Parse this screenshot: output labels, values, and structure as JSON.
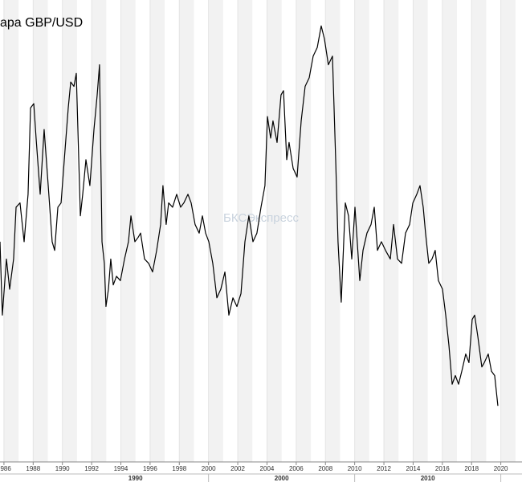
{
  "chart_data": {
    "type": "line",
    "title": "ара GBP/USD",
    "watermark": "БКСЭкспресс",
    "x": [
      1985.73,
      1985.89,
      1986.17,
      1986.39,
      1986.66,
      1986.83,
      1987.1,
      1987.38,
      1987.65,
      1987.82,
      1988.04,
      1988.2,
      1988.48,
      1988.75,
      1989.03,
      1989.3,
      1989.47,
      1989.69,
      1989.91,
      1990.13,
      1990.4,
      1990.57,
      1990.79,
      1990.95,
      1991.23,
      1991.39,
      1991.61,
      1991.88,
      1992.16,
      1992.38,
      1992.54,
      1992.71,
      1992.87,
      1992.98,
      1993.15,
      1993.31,
      1993.48,
      1993.7,
      1993.97,
      1994.25,
      1994.52,
      1994.69,
      1994.96,
      1995.18,
      1995.35,
      1995.62,
      1995.9,
      1996.17,
      1996.45,
      1996.72,
      1996.88,
      1997.1,
      1997.27,
      1997.54,
      1997.82,
      1998.09,
      1998.31,
      1998.59,
      1998.81,
      1999.08,
      1999.36,
      1999.58,
      1999.8,
      2000.02,
      2000.29,
      2000.57,
      2000.84,
      2001.12,
      2001.39,
      2001.67,
      2001.94,
      2002.22,
      2002.49,
      2002.76,
      2003.04,
      2003.31,
      2003.59,
      2003.86,
      2004.03,
      2004.25,
      2004.41,
      2004.69,
      2004.96,
      2005.13,
      2005.35,
      2005.51,
      2005.79,
      2006.06,
      2006.34,
      2006.61,
      2006.89,
      2007.16,
      2007.44,
      2007.71,
      2007.93,
      2008.2,
      2008.48,
      2008.7,
      2008.86,
      2009.08,
      2009.36,
      2009.58,
      2009.8,
      2010.02,
      2010.35,
      2010.57,
      2010.84,
      2011.12,
      2011.34,
      2011.56,
      2011.83,
      2012.11,
      2012.44,
      2012.66,
      2012.93,
      2013.21,
      2013.48,
      2013.76,
      2013.98,
      2014.25,
      2014.47,
      2014.69,
      2014.85,
      2015.07,
      2015.29,
      2015.51,
      2015.73,
      2016.01,
      2016.23,
      2016.45,
      2016.67,
      2016.89,
      2017.11,
      2017.33,
      2017.6,
      2017.82,
      2018.04,
      2018.21,
      2018.43,
      2018.7,
      2018.87,
      2019.14,
      2019.36,
      2019.58,
      2019.8
    ],
    "series": [
      {
        "name": "GBP/USD",
        "color": "#000000",
        "values": [
          1.59,
          1.42,
          1.55,
          1.48,
          1.55,
          1.67,
          1.68,
          1.59,
          1.7,
          1.9,
          1.91,
          1.83,
          1.7,
          1.85,
          1.72,
          1.59,
          1.57,
          1.67,
          1.68,
          1.78,
          1.9,
          1.96,
          1.95,
          1.98,
          1.65,
          1.7,
          1.78,
          1.72,
          1.85,
          1.93,
          2.0,
          1.59,
          1.54,
          1.44,
          1.48,
          1.55,
          1.49,
          1.51,
          1.5,
          1.55,
          1.59,
          1.65,
          1.59,
          1.6,
          1.61,
          1.55,
          1.54,
          1.52,
          1.57,
          1.63,
          1.72,
          1.63,
          1.68,
          1.67,
          1.7,
          1.67,
          1.68,
          1.7,
          1.68,
          1.63,
          1.61,
          1.65,
          1.61,
          1.59,
          1.54,
          1.46,
          1.48,
          1.52,
          1.42,
          1.46,
          1.44,
          1.47,
          1.59,
          1.65,
          1.59,
          1.61,
          1.67,
          1.72,
          1.88,
          1.83,
          1.87,
          1.82,
          1.93,
          1.94,
          1.78,
          1.82,
          1.76,
          1.74,
          1.87,
          1.95,
          1.97,
          2.02,
          2.04,
          2.09,
          2.06,
          2.0,
          2.02,
          1.78,
          1.59,
          1.45,
          1.68,
          1.65,
          1.55,
          1.67,
          1.5,
          1.57,
          1.61,
          1.63,
          1.67,
          1.57,
          1.59,
          1.57,
          1.55,
          1.63,
          1.55,
          1.54,
          1.61,
          1.63,
          1.68,
          1.7,
          1.72,
          1.67,
          1.61,
          1.54,
          1.55,
          1.57,
          1.5,
          1.48,
          1.42,
          1.35,
          1.26,
          1.28,
          1.26,
          1.29,
          1.33,
          1.31,
          1.41,
          1.42,
          1.37,
          1.3,
          1.31,
          1.33,
          1.29,
          1.28,
          1.21
        ]
      }
    ],
    "xlim": [
      1985.73,
      2021.45
    ],
    "ylim": [
      1.08,
      2.15
    ],
    "xticks": [
      1986,
      1988,
      1990,
      1992,
      1994,
      1996,
      1998,
      2000,
      2002,
      2004,
      2006,
      2008,
      2010,
      2012,
      2014,
      2016,
      2018,
      2020,
      2022
    ],
    "decade_labels": [
      1990,
      2000,
      2010
    ],
    "grid": true
  }
}
